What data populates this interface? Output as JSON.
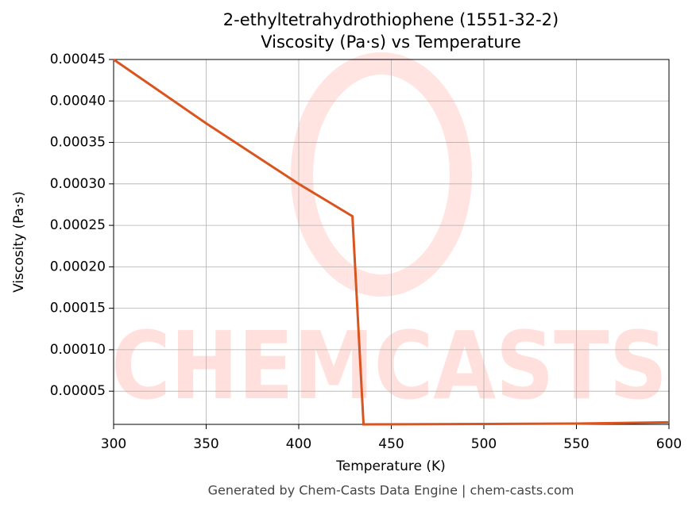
{
  "chart_data": {
    "type": "line",
    "title": "2-ethyltetrahydrothiophene (1551-32-2)",
    "subtitle": "Viscosity (Pa·s) vs Temperature",
    "x_label": "Temperature (K)",
    "y_label": "Viscosity (Pa·s)",
    "footer": "Generated by Chem-Casts Data Engine | chem-casts.com",
    "watermark": "CHEMCASTS",
    "x": [
      300,
      350,
      400,
      429,
      435,
      500,
      550,
      600
    ],
    "series": [
      {
        "name": "Viscosity",
        "color": "#d9541e",
        "values": [
          0.00045,
          0.000373,
          0.0003,
          0.000261,
          1e-05,
          1.05e-05,
          1.1e-05,
          1.25e-05
        ]
      }
    ],
    "xlim": [
      300,
      600
    ],
    "xticks": [
      300,
      350,
      400,
      450,
      500,
      550,
      600
    ],
    "ylim": [
      1e-05,
      0.00045
    ],
    "yticks": [
      {
        "value": 5e-05,
        "label": "0.00005"
      },
      {
        "value": 0.0001,
        "label": "0.00010"
      },
      {
        "value": 0.00015,
        "label": "0.00015"
      },
      {
        "value": 0.0002,
        "label": "0.00020"
      },
      {
        "value": 0.00025,
        "label": "0.00025"
      },
      {
        "value": 0.0003,
        "label": "0.00030"
      },
      {
        "value": 0.00035,
        "label": "0.00035"
      },
      {
        "value": 0.0004,
        "label": "0.00040"
      },
      {
        "value": 0.00045,
        "label": "0.00045"
      }
    ],
    "grid": true
  }
}
